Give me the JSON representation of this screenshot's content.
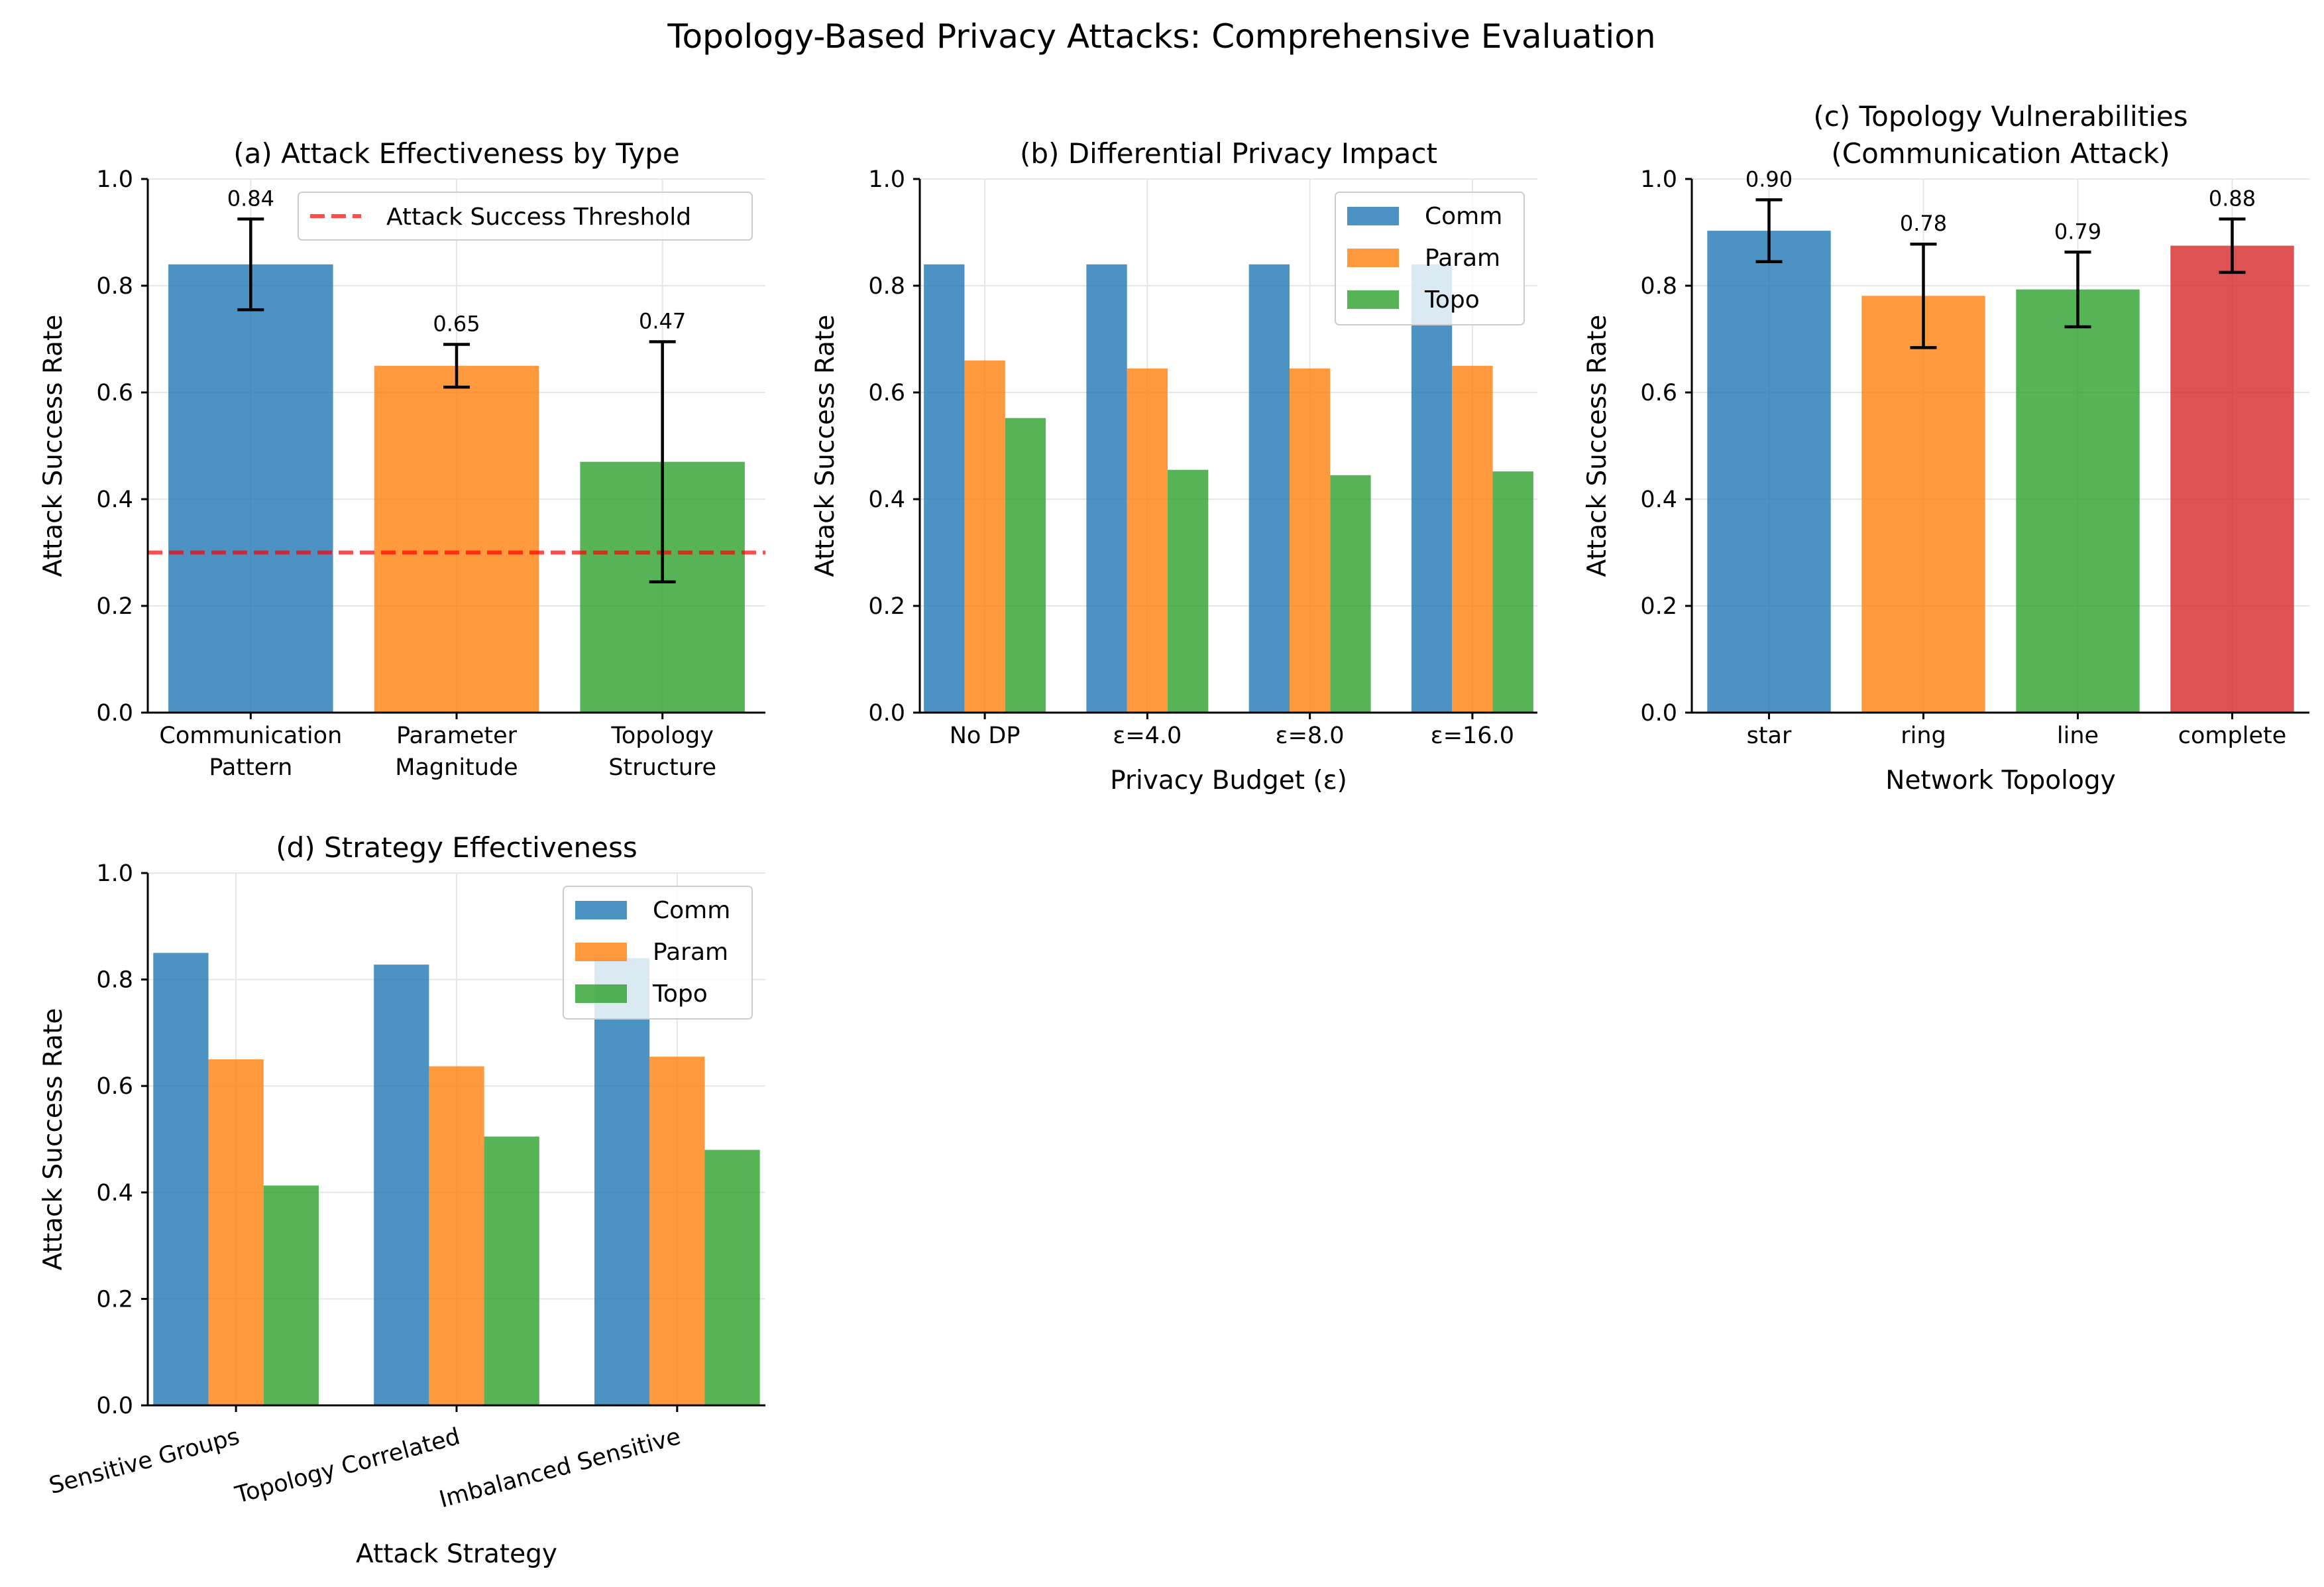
{
  "suptitle": "Topology-Based Privacy Attacks: Comprehensive Evaluation",
  "colors": {
    "blue": "#1f77b4",
    "orange": "#ff7f0e",
    "green": "#2ca02c",
    "red": "#d62728",
    "threshold": "#ff0000",
    "grid": "#e6e6e6"
  },
  "chart_data": [
    {
      "id": "a",
      "type": "bar",
      "title": "(a) Attack Effectiveness by Type",
      "xlabel": "",
      "ylabel": "Attack Success Rate",
      "ylim": [
        0,
        1.0
      ],
      "yticks": [
        "0.0",
        "0.2",
        "0.4",
        "0.6",
        "0.8",
        "1.0"
      ],
      "grid": true,
      "categories": [
        "Communication\nPattern",
        "Parameter\nMagnitude",
        "Topology\nStructure"
      ],
      "values": [
        0.84,
        0.65,
        0.47
      ],
      "errors": [
        0.085,
        0.04,
        0.225
      ],
      "value_labels": [
        "0.84",
        "0.65",
        "0.47"
      ],
      "bar_colors": [
        "blue",
        "orange",
        "green"
      ],
      "threshold": {
        "value": 0.3,
        "label": "Attack Success Threshold"
      },
      "legend_position": "upper right"
    },
    {
      "id": "b",
      "type": "bar",
      "title": "(b) Differential Privacy Impact",
      "xlabel": "Privacy Budget (ε)",
      "ylabel": "Attack Success Rate",
      "ylim": [
        0,
        1.0
      ],
      "yticks": [
        "0.0",
        "0.2",
        "0.4",
        "0.6",
        "0.8",
        "1.0"
      ],
      "grid": true,
      "categories": [
        "No DP",
        "ε=4.0",
        "ε=8.0",
        "ε=16.0"
      ],
      "series": [
        {
          "name": "Comm",
          "color": "blue",
          "values": [
            0.84,
            0.84,
            0.84,
            0.84
          ]
        },
        {
          "name": "Param",
          "color": "orange",
          "values": [
            0.66,
            0.645,
            0.645,
            0.65
          ]
        },
        {
          "name": "Topo",
          "color": "green",
          "values": [
            0.552,
            0.455,
            0.445,
            0.452
          ]
        }
      ],
      "legend_position": "upper right"
    },
    {
      "id": "c",
      "type": "bar",
      "title": "(c) Topology Vulnerabilities\n(Communication Attack)",
      "xlabel": "Network Topology",
      "ylabel": "Attack Success Rate",
      "ylim": [
        0,
        1.0
      ],
      "yticks": [
        "0.0",
        "0.2",
        "0.4",
        "0.6",
        "0.8",
        "1.0"
      ],
      "grid": true,
      "categories": [
        "star",
        "ring",
        "line",
        "complete"
      ],
      "values": [
        0.903,
        0.781,
        0.793,
        0.875
      ],
      "errors": [
        0.058,
        0.097,
        0.07,
        0.05
      ],
      "value_labels": [
        "0.90",
        "0.78",
        "0.79",
        "0.88"
      ],
      "bar_colors": [
        "blue",
        "orange",
        "green",
        "red"
      ]
    },
    {
      "id": "d",
      "type": "bar",
      "title": "(d) Strategy Effectiveness",
      "xlabel": "Attack Strategy",
      "ylabel": "Attack Success Rate",
      "ylim": [
        0,
        1.0
      ],
      "yticks": [
        "0.0",
        "0.2",
        "0.4",
        "0.6",
        "0.8",
        "1.0"
      ],
      "grid": true,
      "categories": [
        "Sensitive Groups",
        "Topology Correlated",
        "Imbalanced Sensitive"
      ],
      "series": [
        {
          "name": "Comm",
          "color": "blue",
          "values": [
            0.85,
            0.828,
            0.84
          ]
        },
        {
          "name": "Param",
          "color": "orange",
          "values": [
            0.65,
            0.637,
            0.655
          ]
        },
        {
          "name": "Topo",
          "color": "green",
          "values": [
            0.413,
            0.505,
            0.48
          ]
        }
      ],
      "legend_position": "upper right"
    }
  ]
}
